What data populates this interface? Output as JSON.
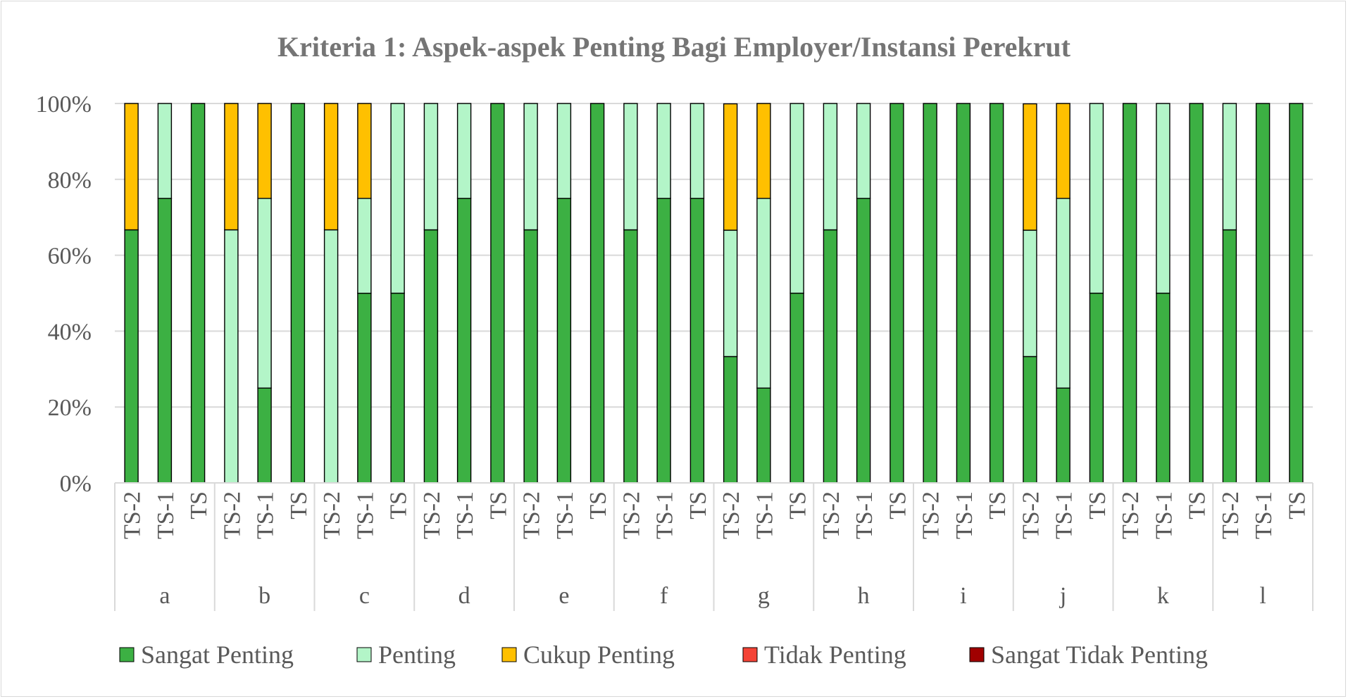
{
  "chart_data": {
    "type": "bar",
    "stacked": true,
    "title": "Kriteria 1: Aspek-aspek Penting Bagi Employer/Instansi Perekrut",
    "xlabel": "",
    "ylabel": "",
    "ylim": [
      0,
      100
    ],
    "yticks": [
      "0%",
      "20%",
      "40%",
      "60%",
      "80%",
      "100%"
    ],
    "grid": true,
    "legend_position": "bottom",
    "groups": [
      "a",
      "b",
      "c",
      "d",
      "e",
      "f",
      "g",
      "h",
      "i",
      "j",
      "k",
      "l"
    ],
    "subcategories": [
      "TS-2",
      "TS-1",
      "TS"
    ],
    "series": [
      {
        "name": "Sangat Penting",
        "color": "#3cb043",
        "values": [
          66.7,
          75,
          100,
          0,
          25,
          100,
          0,
          50,
          50,
          66.7,
          75,
          100,
          66.7,
          75,
          100,
          66.7,
          75,
          75,
          33.3,
          25,
          50,
          66.7,
          75,
          100,
          100,
          100,
          100,
          33.3,
          25,
          50,
          100,
          50,
          100,
          66.7,
          100,
          100
        ]
      },
      {
        "name": "Penting",
        "color": "#b3f5c8",
        "values": [
          0,
          25,
          0,
          66.7,
          50,
          0,
          66.7,
          25,
          50,
          33.3,
          25,
          0,
          33.3,
          25,
          0,
          33.3,
          25,
          25,
          33.3,
          50,
          50,
          33.3,
          25,
          0,
          0,
          0,
          0,
          33.3,
          50,
          50,
          0,
          50,
          0,
          33.3,
          0,
          0
        ]
      },
      {
        "name": "Cukup Penting",
        "color": "#ffc000",
        "values": [
          33.3,
          0,
          0,
          33.3,
          25,
          0,
          33.3,
          25,
          0,
          0,
          0,
          0,
          0,
          0,
          0,
          0,
          0,
          0,
          33.3,
          25,
          0,
          0,
          0,
          0,
          0,
          0,
          0,
          33.3,
          25,
          0,
          0,
          0,
          0,
          0,
          0,
          0
        ]
      },
      {
        "name": "Tidak Penting",
        "color": "#f44336",
        "values": [
          0,
          0,
          0,
          0,
          0,
          0,
          0,
          0,
          0,
          0,
          0,
          0,
          0,
          0,
          0,
          0,
          0,
          0,
          0,
          0,
          0,
          0,
          0,
          0,
          0,
          0,
          0,
          0,
          0,
          0,
          0,
          0,
          0,
          0,
          0,
          0
        ]
      },
      {
        "name": "Sangat Tidak Penting",
        "color": "#a00000",
        "values": [
          0,
          0,
          0,
          0,
          0,
          0,
          0,
          0,
          0,
          0,
          0,
          0,
          0,
          0,
          0,
          0,
          0,
          0,
          0,
          0,
          0,
          0,
          0,
          0,
          0,
          0,
          0,
          0,
          0,
          0,
          0,
          0,
          0,
          0,
          0,
          0
        ]
      }
    ]
  }
}
